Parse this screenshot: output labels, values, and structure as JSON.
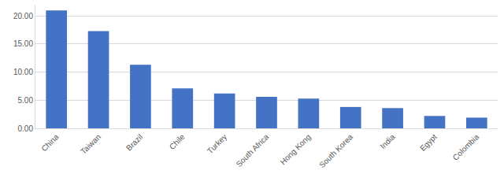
{
  "chart_data": {
    "type": "bar",
    "categories": [
      "China",
      "Taiwan",
      "Brazil",
      "Chile",
      "Turkey",
      "South Africa",
      "Hong Kong",
      "South Korea",
      "India",
      "Egypt",
      "Colombia"
    ],
    "values": [
      21.0,
      17.3,
      11.3,
      7.1,
      6.2,
      5.6,
      5.3,
      3.8,
      3.6,
      2.2,
      1.9
    ],
    "color": "#4472c4",
    "ylim": [
      0,
      22
    ],
    "yticks": [
      {
        "value": 0,
        "label": "0.00"
      },
      {
        "value": 5,
        "label": "5.00"
      },
      {
        "value": 10,
        "label": "10.00"
      },
      {
        "value": 15,
        "label": "15.00"
      },
      {
        "value": 20,
        "label": "20.00"
      }
    ],
    "grid": true
  }
}
